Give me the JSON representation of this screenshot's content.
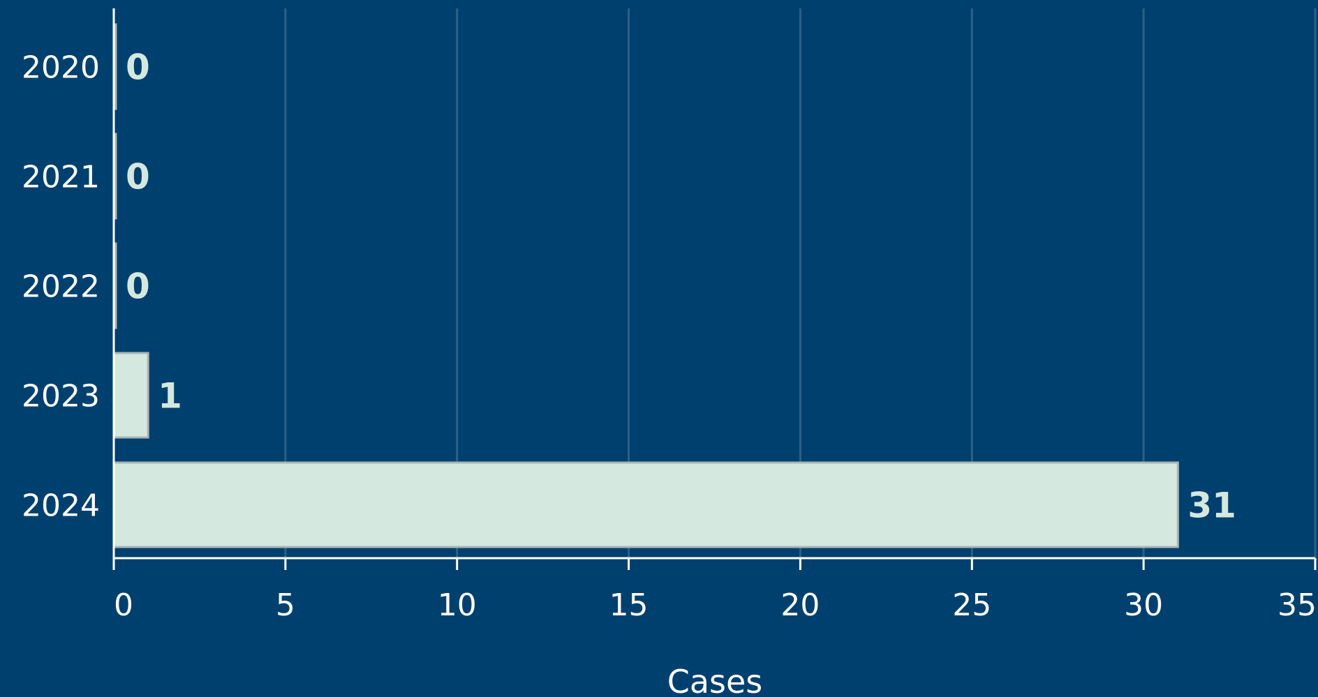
{
  "chart_data": {
    "type": "bar",
    "orientation": "horizontal",
    "categories": [
      "2020",
      "2021",
      "2022",
      "2023",
      "2024"
    ],
    "values": [
      0,
      0,
      0,
      1,
      31
    ],
    "data_labels": [
      "0",
      "0",
      "0",
      "1",
      "31"
    ],
    "title": "",
    "xlabel": "Cases",
    "ylabel": "",
    "xlim": [
      0,
      35
    ],
    "x_ticks": [
      "0",
      "5",
      "10",
      "15",
      "20",
      "25",
      "30",
      "35"
    ],
    "grid": "vertical",
    "colors": {
      "background": "#00406f",
      "bar": "#d5e8df",
      "bar_edge": "#a9b6b4",
      "axis": "#ffffff",
      "grid": "#2b6186",
      "text": "#ffffff"
    }
  }
}
